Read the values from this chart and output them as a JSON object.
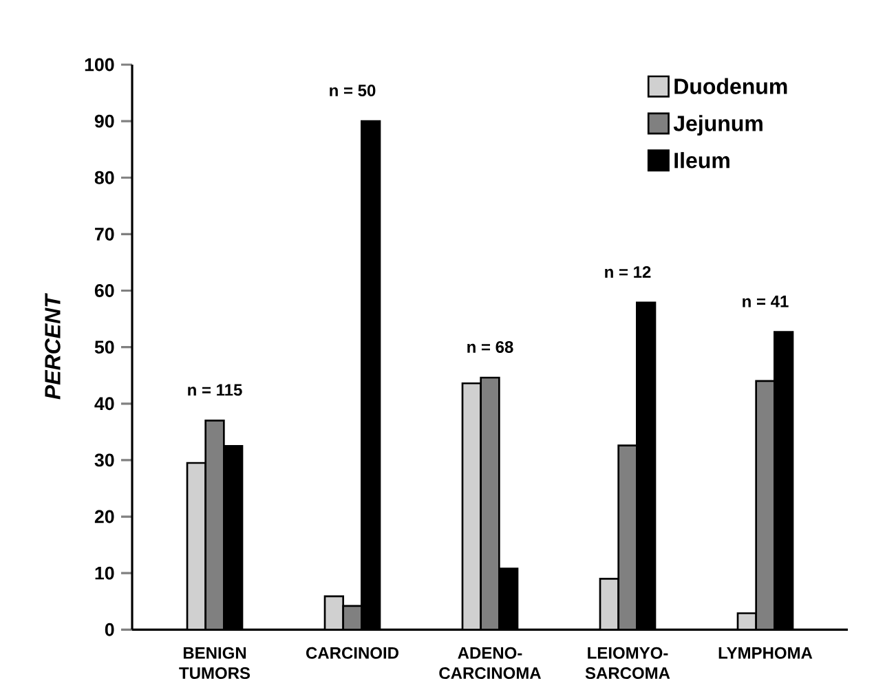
{
  "chart_data": {
    "type": "bar",
    "ylabel": "PERCENT",
    "categories": [
      "BENIGN TUMORS",
      "CARCINOID",
      "ADENO-CARCINOMA",
      "LEIOMYO-SARCOMA",
      "LYMPHOMA"
    ],
    "series": [
      {
        "name": "Duodenum",
        "color": "#d0d0d0",
        "values": [
          29.5,
          5.9,
          43.6,
          9,
          2.9
        ]
      },
      {
        "name": "Jejunum",
        "color": "#808080",
        "values": [
          37,
          4.2,
          44.6,
          32.6,
          44
        ]
      },
      {
        "name": "Ileum",
        "color": "#000000",
        "values": [
          32.5,
          90,
          10.8,
          57.9,
          52.7
        ]
      }
    ],
    "annotations": [
      "n = 115",
      "n = 50",
      "n = 68",
      "n = 12",
      "n = 41"
    ],
    "ylim": [
      0,
      100
    ],
    "yticks": [
      0,
      10,
      20,
      30,
      40,
      50,
      60,
      70,
      80,
      90,
      100
    ],
    "grid": false,
    "legend": "top right"
  }
}
